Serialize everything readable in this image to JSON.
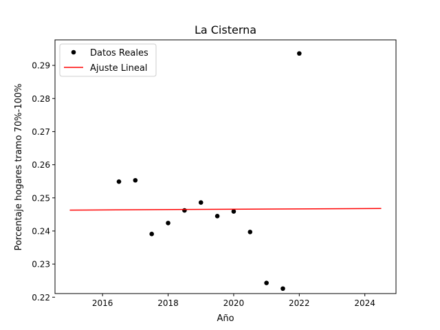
{
  "chart_data": {
    "type": "scatter",
    "title": "La Cisterna",
    "xlabel": "Año",
    "ylabel": "Porcentaje hogares tramo 70%-100%",
    "xlim": [
      2014.55,
      2024.95
    ],
    "ylim": [
      0.2211,
      0.2977
    ],
    "xticks": [
      2016,
      2018,
      2020,
      2022,
      2024
    ],
    "xtick_labels": [
      "2016",
      "2018",
      "2020",
      "2022",
      "2024"
    ],
    "yticks": [
      0.22,
      0.23,
      0.24,
      0.25,
      0.26,
      0.27,
      0.28,
      0.29
    ],
    "ytick_labels": [
      "0.22",
      "0.23",
      "0.24",
      "0.25",
      "0.26",
      "0.27",
      "0.28",
      "0.29"
    ],
    "grid": false,
    "legend_position": "top-left",
    "series": [
      {
        "name": "Datos Reales",
        "kind": "scatter",
        "color": "#000000",
        "points": [
          {
            "x": 2016.5,
            "y": 0.2549
          },
          {
            "x": 2017.0,
            "y": 0.2553
          },
          {
            "x": 2017.5,
            "y": 0.2391
          },
          {
            "x": 2018.0,
            "y": 0.2424
          },
          {
            "x": 2018.5,
            "y": 0.2462
          },
          {
            "x": 2019.0,
            "y": 0.2486
          },
          {
            "x": 2019.5,
            "y": 0.2445
          },
          {
            "x": 2020.0,
            "y": 0.2459
          },
          {
            "x": 2020.5,
            "y": 0.2397
          },
          {
            "x": 2021.0,
            "y": 0.2243
          },
          {
            "x": 2021.5,
            "y": 0.2226
          },
          {
            "x": 2022.0,
            "y": 0.2936
          }
        ]
      },
      {
        "name": "Ajuste Lineal",
        "kind": "line",
        "color": "#ff0000",
        "points": [
          {
            "x": 2015.0,
            "y": 0.2463
          },
          {
            "x": 2024.5,
            "y": 0.2468
          }
        ]
      }
    ]
  }
}
